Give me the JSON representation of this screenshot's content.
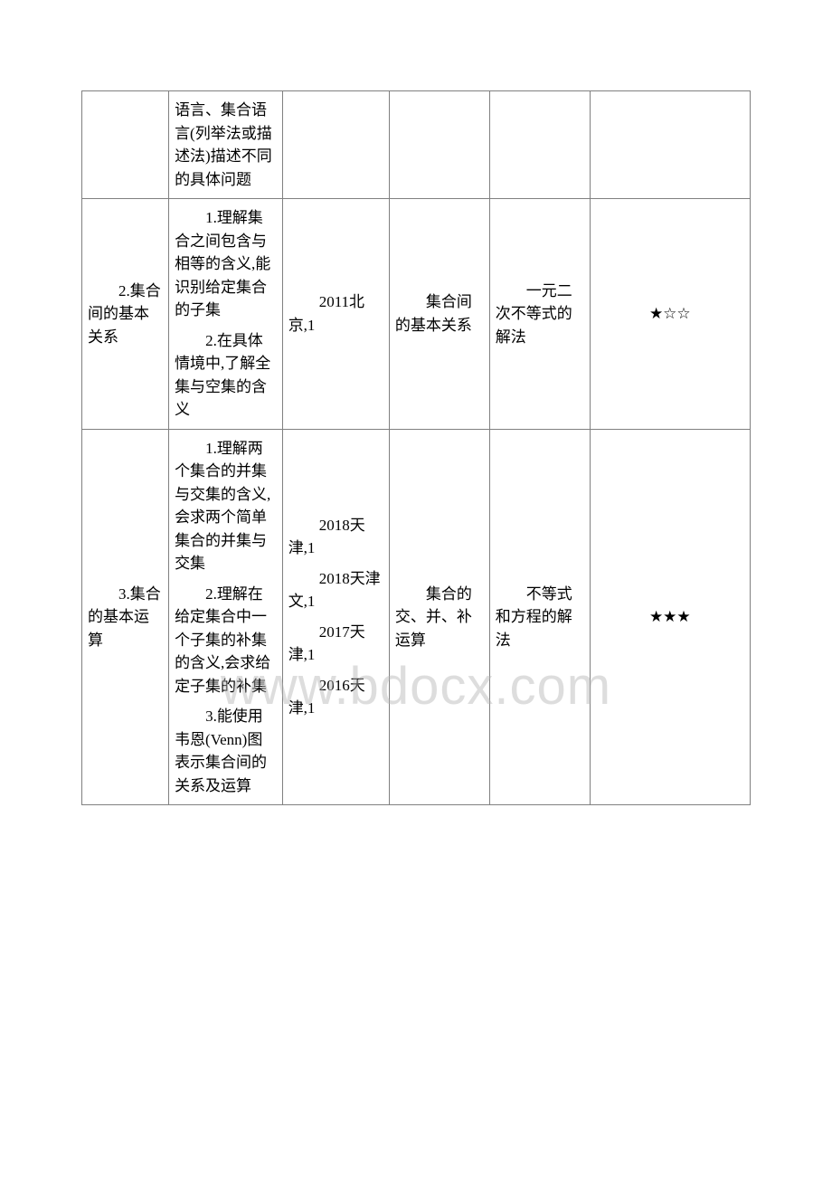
{
  "watermark": "www.bdocx.com",
  "table": {
    "rows": [
      {
        "col1": "",
        "col2": "语言、集合语言(列举法或描述法)描述不同的具体问题",
        "col3": "",
        "col4": "",
        "col5": "",
        "col6": ""
      },
      {
        "col1": "2.集合间的基本关系",
        "col2_p1": "1.理解集合之间包含与相等的含义,能识别给定集合的子集",
        "col2_p2": "2.在具体情境中,了解全集与空集的含义",
        "col3": "2011北京,1",
        "col4": "集合间的基本关系",
        "col5": "一元二次不等式的解法",
        "col6": "★☆☆"
      },
      {
        "col1": "3.集合的基本运算",
        "col2_p1": "1.理解两个集合的并集与交集的含义,会求两个简单集合的并集与交集",
        "col2_p2": "2.理解在给定集合中一个子集的补集的含义,会求给定子集的补集",
        "col2_p3": "3.能使用韦恩(Venn)图表示集合间的关系及运算",
        "col3_p1": "2018天津,1",
        "col3_p2": "2018天津文,1",
        "col3_p3": "2017天津,1",
        "col3_p4": "2016天津,1",
        "col4": "集合的交、并、补运算",
        "col5": "不等式和方程的解法",
        "col6": "★★★"
      }
    ]
  }
}
